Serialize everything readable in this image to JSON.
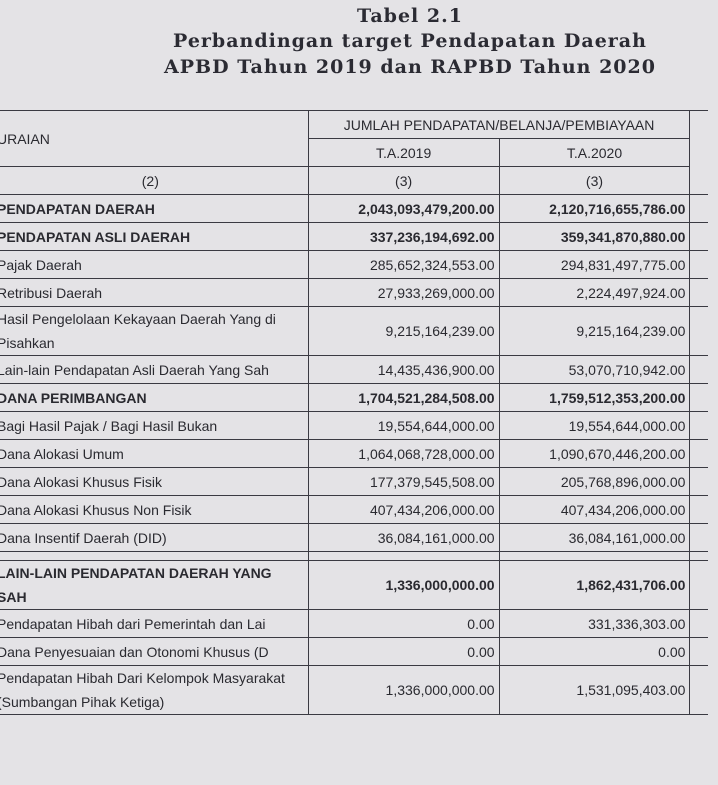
{
  "title": {
    "line1": "Tabel 2.1",
    "line2": "Perbandingan target Pendapatan Daerah",
    "line3": "APBD Tahun 2019  dan RAPBD Tahun 2020"
  },
  "table": {
    "header": {
      "uraian": "URAIAN",
      "group": "JUMLAH PENDAPATAN/BELANJA/PEMBIAYAAN",
      "col_2019": "T.A.2019",
      "col_2020": "T.A.2020",
      "num_1": "(2)",
      "num_2": "(3)",
      "num_3": "(3)"
    },
    "rows": [
      {
        "label": "PENDAPATAN DAERAH",
        "ta2019": "2,043,093,479,200.00",
        "ta2020": "2,120,716,655,786.00"
      },
      {
        "label": "PENDAPATAN ASLI DAERAH",
        "ta2019": "337,236,194,692.00",
        "ta2020": "359,341,870,880.00"
      },
      {
        "label": "Pajak Daerah",
        "ta2019": "285,652,324,553.00",
        "ta2020": "294,831,497,775.00"
      },
      {
        "label": "Retribusi Daerah",
        "ta2019": "27,933,269,000.00",
        "ta2020": "2,224,497,924.00"
      },
      {
        "label": "Hasil Pengelolaan Kekayaan Daerah Yang di Pisahkan",
        "ta2019": "9,215,164,239.00",
        "ta2020": "9,215,164,239.00"
      },
      {
        "label": "Lain-lain Pendapatan Asli Daerah Yang Sah",
        "ta2019": "14,435,436,900.00",
        "ta2020": "53,070,710,942.00"
      },
      {
        "label": "DANA PERIMBANGAN",
        "ta2019": "1,704,521,284,508.00",
        "ta2020": "1,759,512,353,200.00"
      },
      {
        "label": "Bagi Hasil Pajak / Bagi Hasil Bukan",
        "ta2019": "19,554,644,000.00",
        "ta2020": "19,554,644,000.00"
      },
      {
        "label": "Dana Alokasi Umum",
        "ta2019": "1,064,068,728,000.00",
        "ta2020": "1,090,670,446,200.00"
      },
      {
        "label": "Dana Alokasi Khusus Fisik",
        "ta2019": "177,379,545,508.00",
        "ta2020": "205,768,896,000.00"
      },
      {
        "label": "Dana Alokasi Khusus Non Fisik",
        "ta2019": "407,434,206,000.00",
        "ta2020": "407,434,206,000.00"
      },
      {
        "label": "Dana Insentif Daerah (DID)",
        "ta2019": "36,084,161,000.00",
        "ta2020": "36,084,161,000.00"
      },
      {
        "label": "LAIN-LAIN PENDAPATAN DAERAH YANG SAH",
        "ta2019": "1,336,000,000.00",
        "ta2020": "1,862,431,706.00"
      },
      {
        "label": "Pendapatan Hibah dari Pemerintah  dan Lai",
        "ta2019": "0.00",
        "ta2020": "331,336,303.00"
      },
      {
        "label": "Dana Penyesuaian dan Otonomi Khusus (D",
        "ta2019": "0.00",
        "ta2020": "0.00"
      },
      {
        "label": "Pendapatan Hibah Dari Kelompok Masyarakat (Sumbangan Pihak Ketiga)",
        "ta2019": "1,336,000,000.00",
        "ta2020": "1,531,095,403.00"
      }
    ]
  }
}
